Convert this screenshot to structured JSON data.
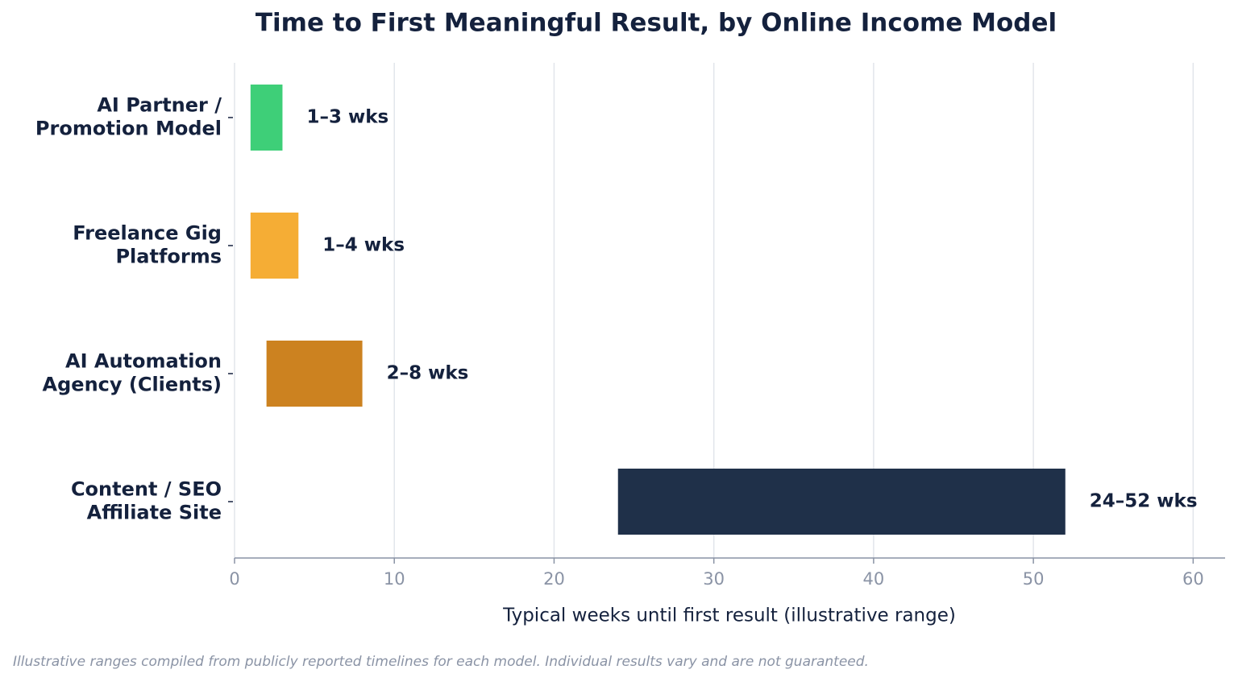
{
  "chart_data": {
    "type": "range_bar",
    "title": "Time to First Meaningful Result, by Online Income Model",
    "x_label": "Typical weeks until first result (illustrative range)",
    "footnote": "Illustrative ranges compiled from publicly reported timelines for each model. Individual results vary and are not guaranteed.",
    "categories": [
      [
        "AI Partner /",
        "Promotion Model"
      ],
      [
        "Freelance Gig",
        "Platforms"
      ],
      [
        "AI Automation",
        "Agency (Clients)"
      ],
      [
        "Content / SEO",
        "Affiliate Site"
      ]
    ],
    "starts": [
      1,
      1,
      2,
      24
    ],
    "ends": [
      3,
      4,
      8,
      52
    ],
    "value_labels": [
      "1–3 wks",
      "1–4 wks",
      "2–8 wks",
      "24–52 wks"
    ],
    "colors": [
      "#3ecf78",
      "#f5ad35",
      "#cc8220",
      "#1f3049"
    ],
    "xlim": [
      0,
      62
    ],
    "xticks": [
      0,
      10,
      20,
      30,
      40,
      50,
      60
    ],
    "grid": true
  }
}
